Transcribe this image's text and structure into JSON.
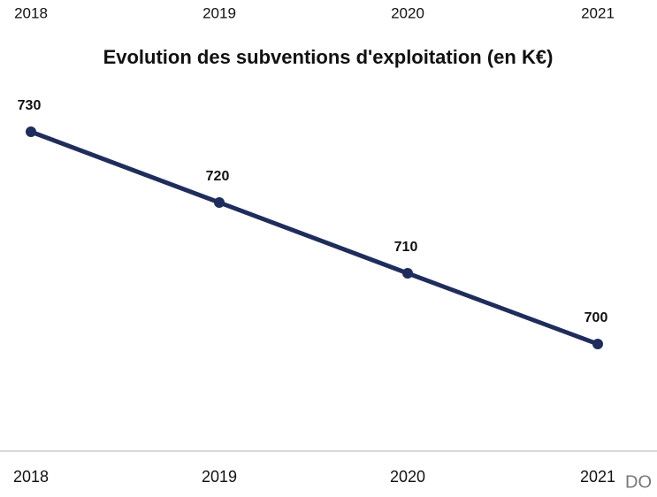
{
  "header": {
    "labels": [
      "2018",
      "2019",
      "2020",
      "2021"
    ]
  },
  "chart_data": {
    "type": "line",
    "title": "Evolution des subventions d'exploitation (en K€)",
    "categories": [
      "2018",
      "2019",
      "2020",
      "2021"
    ],
    "values": [
      730,
      720,
      710,
      700
    ],
    "color": "#1f2d5c"
  },
  "footer": {
    "text": "DO"
  }
}
